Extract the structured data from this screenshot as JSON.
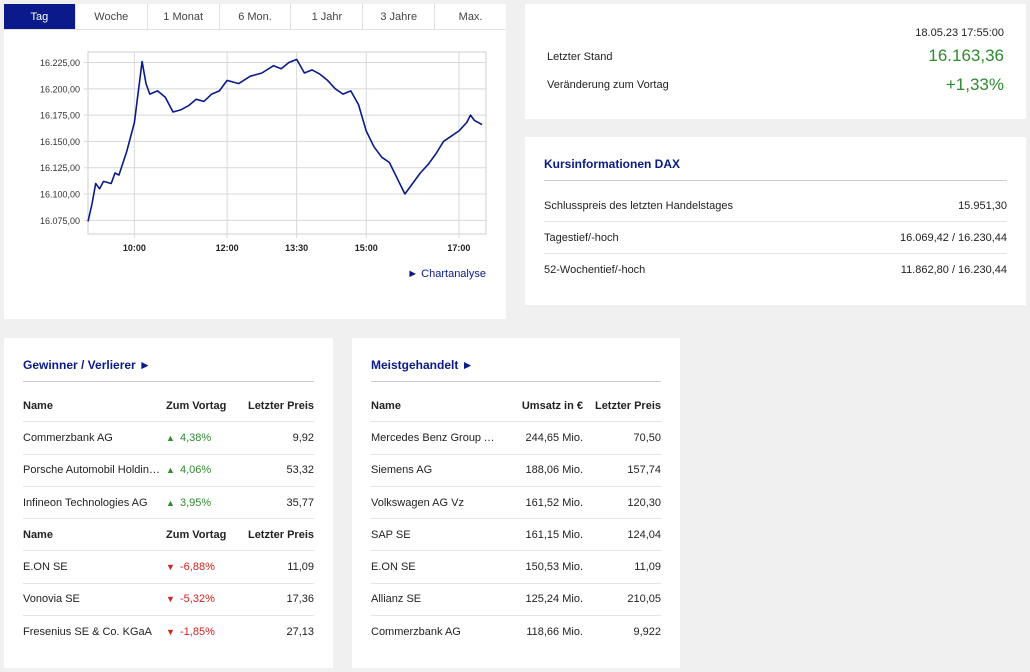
{
  "tabs": [
    "Tag",
    "Woche",
    "1 Monat",
    "6 Mon.",
    "1 Jahr",
    "3 Jahre",
    "Max."
  ],
  "active_tab": 0,
  "chart_link": "► Chartanalyse",
  "colors": {
    "brand": "#0a1a8a",
    "up": "#2e8b2e",
    "down": "#d62020"
  },
  "chart_data": {
    "type": "line",
    "title": "",
    "xlabel": "",
    "ylabel": "",
    "x_ticks": [
      "10:00",
      "12:00",
      "13:30",
      "15:00",
      "17:00"
    ],
    "y_ticks": [
      "16.075,00",
      "16.100,00",
      "16.125,00",
      "16.150,00",
      "16.175,00",
      "16.200,00",
      "16.225,00"
    ],
    "ylim": [
      16062,
      16235
    ],
    "xlim": [
      "09:00",
      "17:35"
    ],
    "grid": true,
    "series": [
      {
        "name": "",
        "color": "#0a1a8a",
        "x": [
          "09:00",
          "09:05",
          "09:10",
          "09:15",
          "09:20",
          "09:30",
          "09:35",
          "09:40",
          "09:50",
          "10:00",
          "10:10",
          "10:15",
          "10:20",
          "10:30",
          "10:40",
          "10:50",
          "11:00",
          "11:10",
          "11:20",
          "11:30",
          "11:40",
          "11:50",
          "12:00",
          "12:15",
          "12:30",
          "12:45",
          "13:00",
          "13:10",
          "13:20",
          "13:30",
          "13:40",
          "13:50",
          "14:00",
          "14:10",
          "14:20",
          "14:30",
          "14:40",
          "14:50",
          "15:00",
          "15:10",
          "15:20",
          "15:30",
          "15:40",
          "15:50",
          "16:00",
          "16:10",
          "16:20",
          "16:30",
          "16:40",
          "16:50",
          "17:00",
          "17:10",
          "17:15",
          "17:20",
          "17:30"
        ],
        "y": [
          16074,
          16090,
          16110,
          16105,
          16112,
          16110,
          16120,
          16118,
          16140,
          16168,
          16226,
          16205,
          16195,
          16198,
          16192,
          16178,
          16180,
          16184,
          16190,
          16188,
          16195,
          16198,
          16208,
          16205,
          16212,
          16215,
          16222,
          16219,
          16225,
          16228,
          16215,
          16218,
          16214,
          16208,
          16200,
          16195,
          16198,
          16185,
          16160,
          16145,
          16135,
          16130,
          16115,
          16100,
          16110,
          16120,
          16128,
          16138,
          16150,
          16155,
          16160,
          16168,
          16175,
          16170,
          16166
        ]
      }
    ]
  },
  "quote": {
    "timestamp": "18.05.23 17:55:00",
    "last_label": "Letzter Stand",
    "last_value": "16.163,36",
    "change_label": "Veränderung zum Vortag",
    "change_value": "+1,33%"
  },
  "info": {
    "title": "Kursinformationen DAX",
    "rows": [
      {
        "label": "Schlusspreis des letzten Handelstages",
        "value": "15.951,30"
      },
      {
        "label": "Tagestief/-hoch",
        "value": "16.069,42 / 16.230,44"
      },
      {
        "label": "52-Wochentief/-hoch",
        "value": "11.862,80 / 16.230,44"
      }
    ]
  },
  "gainers": {
    "title": "Gewinner / Verlierer ►",
    "headers": {
      "name": "Name",
      "change": "Zum Vortag",
      "price": "Letzter Preis"
    },
    "winners": [
      {
        "name": "Commerzbank AG",
        "change": "4,38%",
        "price": "9,92"
      },
      {
        "name": "Porsche Automobil Holding…",
        "change": "4,06%",
        "price": "53,32"
      },
      {
        "name": "Infineon Technologies AG",
        "change": "3,95%",
        "price": "35,77"
      }
    ],
    "losers": [
      {
        "name": "E.ON SE",
        "change": "-6,88%",
        "price": "11,09"
      },
      {
        "name": "Vonovia SE",
        "change": "-5,32%",
        "price": "17,36"
      },
      {
        "name": "Fresenius SE & Co. KGaA",
        "change": "-1,85%",
        "price": "27,13"
      }
    ]
  },
  "most_traded": {
    "title": "Meistgehandelt ►",
    "headers": {
      "name": "Name",
      "volume": "Umsatz in €",
      "price": "Letzter Preis"
    },
    "rows": [
      {
        "name": "Mercedes Benz Group AG …",
        "volume": "244,65 Mio.",
        "price": "70,50"
      },
      {
        "name": "Siemens AG",
        "volume": "188,06 Mio.",
        "price": "157,74"
      },
      {
        "name": "Volkswagen AG Vz",
        "volume": "161,52 Mio.",
        "price": "120,30"
      },
      {
        "name": "SAP SE",
        "volume": "161,15 Mio.",
        "price": "124,04"
      },
      {
        "name": "E.ON SE",
        "volume": "150,53 Mio.",
        "price": "11,09"
      },
      {
        "name": "Allianz SE",
        "volume": "125,24 Mio.",
        "price": "210,05"
      },
      {
        "name": "Commerzbank AG",
        "volume": "118,66 Mio.",
        "price": "9,922"
      }
    ]
  }
}
